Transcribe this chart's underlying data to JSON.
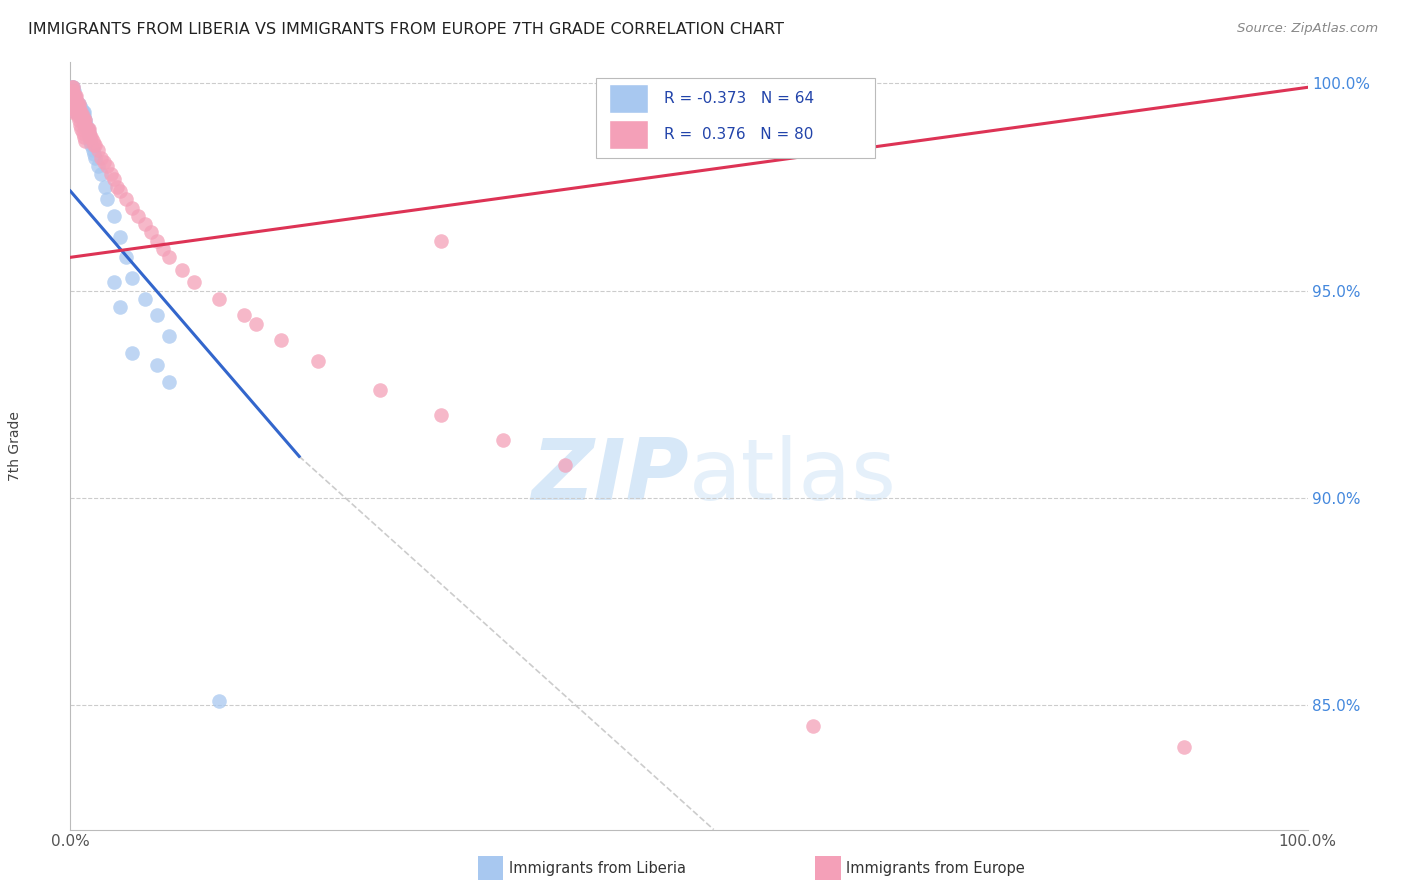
{
  "title": "IMMIGRANTS FROM LIBERIA VS IMMIGRANTS FROM EUROPE 7TH GRADE CORRELATION CHART",
  "source": "Source: ZipAtlas.com",
  "ylabel": "7th Grade",
  "legend_blue_label": "Immigrants from Liberia",
  "legend_pink_label": "Immigrants from Europe",
  "R_blue": -0.373,
  "N_blue": 64,
  "R_pink": 0.376,
  "N_pink": 80,
  "blue_color": "#a8c8f0",
  "pink_color": "#f4a0b8",
  "blue_line_color": "#3366cc",
  "pink_line_color": "#dd3355",
  "xlim": [
    0.0,
    1.0
  ],
  "ylim": [
    0.82,
    1.005
  ],
  "y_ticks": [
    0.85,
    0.9,
    0.95,
    1.0
  ],
  "y_tick_labels": [
    "85.0%",
    "90.0%",
    "95.0%",
    "100.0%"
  ],
  "blue_x": [
    0.001,
    0.001,
    0.001,
    0.002,
    0.002,
    0.002,
    0.002,
    0.003,
    0.003,
    0.003,
    0.003,
    0.003,
    0.004,
    0.004,
    0.004,
    0.004,
    0.005,
    0.005,
    0.005,
    0.005,
    0.006,
    0.006,
    0.006,
    0.007,
    0.007,
    0.007,
    0.008,
    0.008,
    0.008,
    0.009,
    0.009,
    0.01,
    0.01,
    0.01,
    0.011,
    0.011,
    0.012,
    0.012,
    0.013,
    0.014,
    0.015,
    0.015,
    0.016,
    0.017,
    0.018,
    0.019,
    0.02,
    0.022,
    0.025,
    0.028,
    0.03,
    0.035,
    0.04,
    0.045,
    0.05,
    0.06,
    0.07,
    0.08,
    0.035,
    0.04,
    0.05,
    0.07,
    0.08,
    0.12
  ],
  "blue_y": [
    0.999,
    0.998,
    0.997,
    0.999,
    0.998,
    0.997,
    0.996,
    0.998,
    0.997,
    0.996,
    0.995,
    0.994,
    0.997,
    0.996,
    0.995,
    0.994,
    0.996,
    0.995,
    0.994,
    0.993,
    0.995,
    0.994,
    0.993,
    0.995,
    0.994,
    0.993,
    0.994,
    0.993,
    0.992,
    0.994,
    0.993,
    0.993,
    0.992,
    0.991,
    0.993,
    0.992,
    0.991,
    0.99,
    0.99,
    0.989,
    0.988,
    0.987,
    0.986,
    0.985,
    0.984,
    0.983,
    0.982,
    0.98,
    0.978,
    0.975,
    0.972,
    0.968,
    0.963,
    0.958,
    0.953,
    0.948,
    0.944,
    0.939,
    0.952,
    0.946,
    0.935,
    0.932,
    0.928,
    0.851
  ],
  "pink_x": [
    0.001,
    0.001,
    0.002,
    0.002,
    0.003,
    0.003,
    0.004,
    0.004,
    0.005,
    0.005,
    0.006,
    0.006,
    0.007,
    0.007,
    0.008,
    0.008,
    0.009,
    0.009,
    0.01,
    0.01,
    0.011,
    0.011,
    0.012,
    0.012,
    0.013,
    0.014,
    0.015,
    0.015,
    0.016,
    0.017,
    0.018,
    0.019,
    0.02,
    0.022,
    0.025,
    0.027,
    0.03,
    0.033,
    0.035,
    0.038,
    0.04,
    0.045,
    0.05,
    0.055,
    0.06,
    0.065,
    0.07,
    0.075,
    0.08,
    0.09,
    0.1,
    0.12,
    0.14,
    0.15,
    0.17,
    0.2,
    0.25,
    0.3,
    0.35,
    0.4,
    0.001,
    0.001,
    0.001,
    0.001,
    0.001,
    0.002,
    0.002,
    0.003,
    0.004,
    0.005,
    0.006,
    0.007,
    0.008,
    0.009,
    0.01,
    0.011,
    0.012,
    0.3,
    0.6,
    0.9
  ],
  "pink_y": [
    0.999,
    0.998,
    0.999,
    0.998,
    0.997,
    0.996,
    0.997,
    0.996,
    0.997,
    0.996,
    0.995,
    0.994,
    0.995,
    0.994,
    0.993,
    0.992,
    0.993,
    0.992,
    0.992,
    0.991,
    0.991,
    0.99,
    0.991,
    0.99,
    0.989,
    0.989,
    0.989,
    0.988,
    0.987,
    0.987,
    0.986,
    0.985,
    0.985,
    0.984,
    0.982,
    0.981,
    0.98,
    0.978,
    0.977,
    0.975,
    0.974,
    0.972,
    0.97,
    0.968,
    0.966,
    0.964,
    0.962,
    0.96,
    0.958,
    0.955,
    0.952,
    0.948,
    0.944,
    0.942,
    0.938,
    0.933,
    0.926,
    0.92,
    0.914,
    0.908,
    0.997,
    0.996,
    0.995,
    0.994,
    0.993,
    0.997,
    0.996,
    0.995,
    0.994,
    0.993,
    0.992,
    0.991,
    0.99,
    0.989,
    0.988,
    0.987,
    0.986,
    0.962,
    0.845,
    0.84
  ],
  "blue_line_x": [
    0.0,
    0.185
  ],
  "blue_line_y": [
    0.974,
    0.91
  ],
  "pink_line_x": [
    0.0,
    1.0
  ],
  "pink_line_y": [
    0.958,
    0.999
  ],
  "dash_line_x": [
    0.185,
    0.52
  ],
  "dash_line_y": [
    0.91,
    0.82
  ]
}
